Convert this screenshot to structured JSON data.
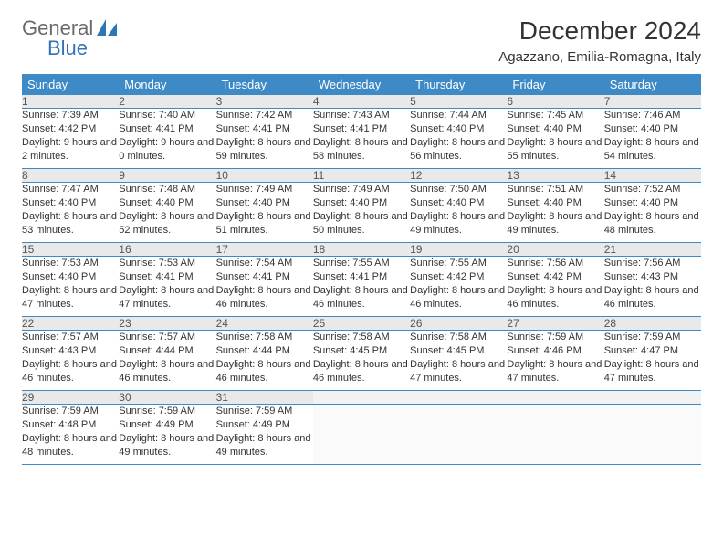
{
  "logo": {
    "word1": "General",
    "word2": "Blue",
    "shape_color": "#2e75b6",
    "text_gray": "#6a6a6a"
  },
  "title": "December 2024",
  "location": "Agazzano, Emilia-Romagna, Italy",
  "header_bg": "#3d8ac7",
  "header_fg": "#ffffff",
  "daynum_bg": "#e9e9e9",
  "border_color": "#3d8ac7",
  "weekdays": [
    "Sunday",
    "Monday",
    "Tuesday",
    "Wednesday",
    "Thursday",
    "Friday",
    "Saturday"
  ],
  "weeks": [
    [
      {
        "n": "1",
        "sr": "Sunrise: 7:39 AM",
        "ss": "Sunset: 4:42 PM",
        "dl": "Daylight: 9 hours and 2 minutes."
      },
      {
        "n": "2",
        "sr": "Sunrise: 7:40 AM",
        "ss": "Sunset: 4:41 PM",
        "dl": "Daylight: 9 hours and 0 minutes."
      },
      {
        "n": "3",
        "sr": "Sunrise: 7:42 AM",
        "ss": "Sunset: 4:41 PM",
        "dl": "Daylight: 8 hours and 59 minutes."
      },
      {
        "n": "4",
        "sr": "Sunrise: 7:43 AM",
        "ss": "Sunset: 4:41 PM",
        "dl": "Daylight: 8 hours and 58 minutes."
      },
      {
        "n": "5",
        "sr": "Sunrise: 7:44 AM",
        "ss": "Sunset: 4:40 PM",
        "dl": "Daylight: 8 hours and 56 minutes."
      },
      {
        "n": "6",
        "sr": "Sunrise: 7:45 AM",
        "ss": "Sunset: 4:40 PM",
        "dl": "Daylight: 8 hours and 55 minutes."
      },
      {
        "n": "7",
        "sr": "Sunrise: 7:46 AM",
        "ss": "Sunset: 4:40 PM",
        "dl": "Daylight: 8 hours and 54 minutes."
      }
    ],
    [
      {
        "n": "8",
        "sr": "Sunrise: 7:47 AM",
        "ss": "Sunset: 4:40 PM",
        "dl": "Daylight: 8 hours and 53 minutes."
      },
      {
        "n": "9",
        "sr": "Sunrise: 7:48 AM",
        "ss": "Sunset: 4:40 PM",
        "dl": "Daylight: 8 hours and 52 minutes."
      },
      {
        "n": "10",
        "sr": "Sunrise: 7:49 AM",
        "ss": "Sunset: 4:40 PM",
        "dl": "Daylight: 8 hours and 51 minutes."
      },
      {
        "n": "11",
        "sr": "Sunrise: 7:49 AM",
        "ss": "Sunset: 4:40 PM",
        "dl": "Daylight: 8 hours and 50 minutes."
      },
      {
        "n": "12",
        "sr": "Sunrise: 7:50 AM",
        "ss": "Sunset: 4:40 PM",
        "dl": "Daylight: 8 hours and 49 minutes."
      },
      {
        "n": "13",
        "sr": "Sunrise: 7:51 AM",
        "ss": "Sunset: 4:40 PM",
        "dl": "Daylight: 8 hours and 49 minutes."
      },
      {
        "n": "14",
        "sr": "Sunrise: 7:52 AM",
        "ss": "Sunset: 4:40 PM",
        "dl": "Daylight: 8 hours and 48 minutes."
      }
    ],
    [
      {
        "n": "15",
        "sr": "Sunrise: 7:53 AM",
        "ss": "Sunset: 4:40 PM",
        "dl": "Daylight: 8 hours and 47 minutes."
      },
      {
        "n": "16",
        "sr": "Sunrise: 7:53 AM",
        "ss": "Sunset: 4:41 PM",
        "dl": "Daylight: 8 hours and 47 minutes."
      },
      {
        "n": "17",
        "sr": "Sunrise: 7:54 AM",
        "ss": "Sunset: 4:41 PM",
        "dl": "Daylight: 8 hours and 46 minutes."
      },
      {
        "n": "18",
        "sr": "Sunrise: 7:55 AM",
        "ss": "Sunset: 4:41 PM",
        "dl": "Daylight: 8 hours and 46 minutes."
      },
      {
        "n": "19",
        "sr": "Sunrise: 7:55 AM",
        "ss": "Sunset: 4:42 PM",
        "dl": "Daylight: 8 hours and 46 minutes."
      },
      {
        "n": "20",
        "sr": "Sunrise: 7:56 AM",
        "ss": "Sunset: 4:42 PM",
        "dl": "Daylight: 8 hours and 46 minutes."
      },
      {
        "n": "21",
        "sr": "Sunrise: 7:56 AM",
        "ss": "Sunset: 4:43 PM",
        "dl": "Daylight: 8 hours and 46 minutes."
      }
    ],
    [
      {
        "n": "22",
        "sr": "Sunrise: 7:57 AM",
        "ss": "Sunset: 4:43 PM",
        "dl": "Daylight: 8 hours and 46 minutes."
      },
      {
        "n": "23",
        "sr": "Sunrise: 7:57 AM",
        "ss": "Sunset: 4:44 PM",
        "dl": "Daylight: 8 hours and 46 minutes."
      },
      {
        "n": "24",
        "sr": "Sunrise: 7:58 AM",
        "ss": "Sunset: 4:44 PM",
        "dl": "Daylight: 8 hours and 46 minutes."
      },
      {
        "n": "25",
        "sr": "Sunrise: 7:58 AM",
        "ss": "Sunset: 4:45 PM",
        "dl": "Daylight: 8 hours and 46 minutes."
      },
      {
        "n": "26",
        "sr": "Sunrise: 7:58 AM",
        "ss": "Sunset: 4:45 PM",
        "dl": "Daylight: 8 hours and 47 minutes."
      },
      {
        "n": "27",
        "sr": "Sunrise: 7:59 AM",
        "ss": "Sunset: 4:46 PM",
        "dl": "Daylight: 8 hours and 47 minutes."
      },
      {
        "n": "28",
        "sr": "Sunrise: 7:59 AM",
        "ss": "Sunset: 4:47 PM",
        "dl": "Daylight: 8 hours and 47 minutes."
      }
    ],
    [
      {
        "n": "29",
        "sr": "Sunrise: 7:59 AM",
        "ss": "Sunset: 4:48 PM",
        "dl": "Daylight: 8 hours and 48 minutes."
      },
      {
        "n": "30",
        "sr": "Sunrise: 7:59 AM",
        "ss": "Sunset: 4:49 PM",
        "dl": "Daylight: 8 hours and 49 minutes."
      },
      {
        "n": "31",
        "sr": "Sunrise: 7:59 AM",
        "ss": "Sunset: 4:49 PM",
        "dl": "Daylight: 8 hours and 49 minutes."
      },
      null,
      null,
      null,
      null
    ]
  ]
}
